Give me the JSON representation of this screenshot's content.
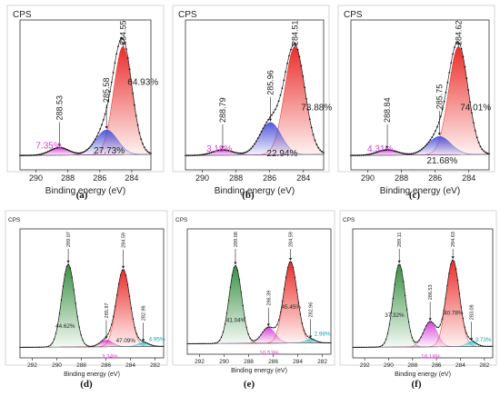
{
  "chart_data": [
    {
      "type": "area",
      "panel_label": "(a)",
      "ylabel": "CPS",
      "xlabel": "Binding energy (eV)",
      "xlim": [
        291,
        282.8
      ],
      "xticks": [
        "290",
        "288",
        "286",
        "284"
      ],
      "series": [
        {
          "center": 284.55,
          "color": "#e8231f",
          "percent": "64.93%",
          "peak_label": "284.55",
          "fwhm": 1.35,
          "amplitude": 1.0
        },
        {
          "center": 285.58,
          "color": "#4a4fd8",
          "percent": "27.73%",
          "peak_label": "285.58",
          "fwhm": 1.6,
          "amplitude": 0.23
        },
        {
          "center": 288.53,
          "color": "#d63fd6",
          "percent": "7.35%",
          "peak_label": "288.53",
          "fwhm": 1.4,
          "amplitude": 0.07
        }
      ]
    },
    {
      "type": "area",
      "panel_label": "(b)",
      "ylabel": "CPS",
      "xlabel": "Binding energy (eV)",
      "xlim": [
        291,
        282.8
      ],
      "xticks": [
        "290",
        "288",
        "286",
        "284"
      ],
      "series": [
        {
          "center": 284.51,
          "color": "#e8231f",
          "percent": "73.88%",
          "peak_label": "284.51",
          "fwhm": 1.4,
          "amplitude": 1.0
        },
        {
          "center": 285.96,
          "color": "#4a4fd8",
          "percent": "22.94%",
          "peak_label": "285.96",
          "fwhm": 1.5,
          "amplitude": 0.3
        },
        {
          "center": 288.79,
          "color": "#d63fd6",
          "percent": "3.18%",
          "peak_label": "288.79",
          "fwhm": 1.4,
          "amplitude": 0.05
        }
      ]
    },
    {
      "type": "area",
      "panel_label": "(c)",
      "ylabel": "CPS",
      "xlabel": "Binding energy (eV)",
      "xlim": [
        291,
        282.8
      ],
      "xticks": [
        "290",
        "288",
        "286",
        "284"
      ],
      "series": [
        {
          "center": 284.62,
          "color": "#e8231f",
          "percent": "74.01%",
          "peak_label": "284.62",
          "fwhm": 1.35,
          "amplitude": 1.0
        },
        {
          "center": 285.75,
          "color": "#4a4fd8",
          "percent": "21.68%",
          "peak_label": "285.75",
          "fwhm": 1.6,
          "amplitude": 0.17
        },
        {
          "center": 288.84,
          "color": "#d63fd6",
          "percent": "4.31%",
          "peak_label": "288.84",
          "fwhm": 1.4,
          "amplitude": 0.05
        }
      ]
    },
    {
      "type": "area",
      "panel_label": "(d)",
      "ylabel": "CPS",
      "xlabel": "Binding energy (eV)",
      "xlim": [
        293,
        281.3
      ],
      "xticks": [
        "292",
        "290",
        "288",
        "286",
        "284",
        "282"
      ],
      "series": [
        {
          "center": 289.07,
          "color": "#2e8b3a",
          "percent": "44.62%",
          "peak_label": "289.07",
          "fwhm": 1.25,
          "amplitude": 0.86
        },
        {
          "center": 285.97,
          "color": "#d63fd6",
          "percent": "3.34%",
          "peak_label": "285.97",
          "fwhm": 1.2,
          "amplitude": 0.07
        },
        {
          "center": 284.59,
          "color": "#e8231f",
          "percent": "47.09%",
          "peak_label": "284.59",
          "fwhm": 1.3,
          "amplitude": 0.8
        },
        {
          "center": 282.96,
          "color": "#1fc6c6",
          "percent": "4.95%",
          "peak_label": "282.96",
          "fwhm": 1.1,
          "amplitude": 0.04
        }
      ]
    },
    {
      "type": "area",
      "panel_label": "(e)",
      "ylabel": "CPS",
      "xlabel": "Binding energy (eV)",
      "xlim": [
        293,
        281.3
      ],
      "xticks": [
        "292",
        "290",
        "288",
        "286",
        "284",
        "282"
      ],
      "series": [
        {
          "center": 289.08,
          "color": "#2e8b3a",
          "percent": "41.04%",
          "peak_label": "289.08",
          "fwhm": 1.2,
          "amplitude": 0.84
        },
        {
          "center": 286.39,
          "color": "#d63fd6",
          "percent": "10.53%",
          "peak_label": "286.39",
          "fwhm": 1.3,
          "amplitude": 0.17
        },
        {
          "center": 284.59,
          "color": "#e8231f",
          "percent": "45.45%",
          "peak_label": "284.59",
          "fwhm": 1.3,
          "amplitude": 0.88
        },
        {
          "center": 282.96,
          "color": "#1fc6c6",
          "percent": "2.98%",
          "peak_label": "282.96",
          "fwhm": 1.0,
          "amplitude": 0.04
        }
      ]
    },
    {
      "type": "area",
      "panel_label": "(f)",
      "ylabel": "CPS",
      "xlabel": "Binding energy (eV)",
      "xlim": [
        293,
        281.3
      ],
      "xticks": [
        "292",
        "290",
        "288",
        "286",
        "284",
        "282"
      ],
      "series": [
        {
          "center": 289.11,
          "color": "#2e8b3a",
          "percent": "37.32%",
          "peak_label": "289.11",
          "fwhm": 1.2,
          "amplitude": 0.86
        },
        {
          "center": 286.53,
          "color": "#d63fd6",
          "percent": "18.18%",
          "peak_label": "286.53",
          "fwhm": 1.3,
          "amplitude": 0.26
        },
        {
          "center": 284.63,
          "color": "#e8231f",
          "percent": "40.78%",
          "peak_label": "284.63",
          "fwhm": 1.3,
          "amplitude": 0.9
        },
        {
          "center": 283.08,
          "color": "#1fc6c6",
          "percent": "3.73%",
          "peak_label": "283.08",
          "fwhm": 1.0,
          "amplitude": 0.05
        }
      ]
    }
  ]
}
